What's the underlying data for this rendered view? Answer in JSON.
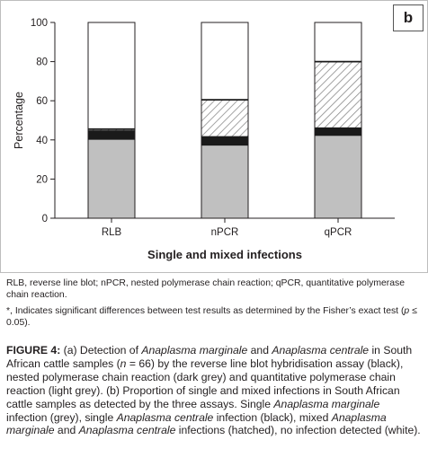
{
  "panel_label": "b",
  "chart_data": {
    "type": "bar",
    "stacked": true,
    "categories": [
      "RLB",
      "nPCR",
      "qPCR"
    ],
    "series": [
      {
        "key": "single_marginale",
        "color": "#c0c0c0",
        "pattern": "solid",
        "values": [
          40.5,
          37.5,
          42.5
        ]
      },
      {
        "key": "single_centrale",
        "color": "#1a1a1a",
        "pattern": "solid",
        "values": [
          4,
          4,
          3.5
        ]
      },
      {
        "key": "mixed",
        "color": "#ffffff",
        "pattern": "hatched",
        "values": [
          1,
          19,
          34
        ]
      },
      {
        "key": "none",
        "color": "#ffffff",
        "pattern": "solid",
        "values": [
          54.5,
          39.5,
          20
        ]
      }
    ],
    "ylabel": "Percentage",
    "xlabel": "Single and mixed infections",
    "ylim": [
      0,
      100
    ],
    "yticks": [
      0,
      20,
      40,
      60,
      80,
      100
    ],
    "grid": false
  },
  "footnotes": {
    "abbrev": "RLB, reverse line blot; nPCR, nested polymerase chain reaction; qPCR, quantitative polymerase chain reaction.",
    "sig_a": "*, Indicates significant differences between test results as determined by the Fisher’s exact test (",
    "sig_p": "p",
    "sig_b": " ≤ 0.05)."
  },
  "caption": {
    "label": "FIGURE 4:",
    "t1": " (a) Detection of ",
    "i1": "Anaplasma marginale",
    "t2": " and ",
    "i2": "Anaplasma centrale",
    "t3": " in South African cattle samples (",
    "i3": "n",
    "t4": " = 66) by the reverse line blot hybridisation assay (black), nested polymerase chain reaction (dark grey) and quantitative polymerase chain reaction (light grey). (b) Proportion of single and mixed infections in South African cattle samples as detected by the three assays. Single ",
    "i4": "Anaplasma marginale",
    "t5": " infection (grey), single ",
    "i5": "Anaplasma centrale",
    "t6": " infection (black), mixed ",
    "i6": "Anaplasma marginale",
    "t7": " and ",
    "i7": "Anaplasma centrale",
    "t8": " infections (hatched), no infection detected (white)."
  }
}
